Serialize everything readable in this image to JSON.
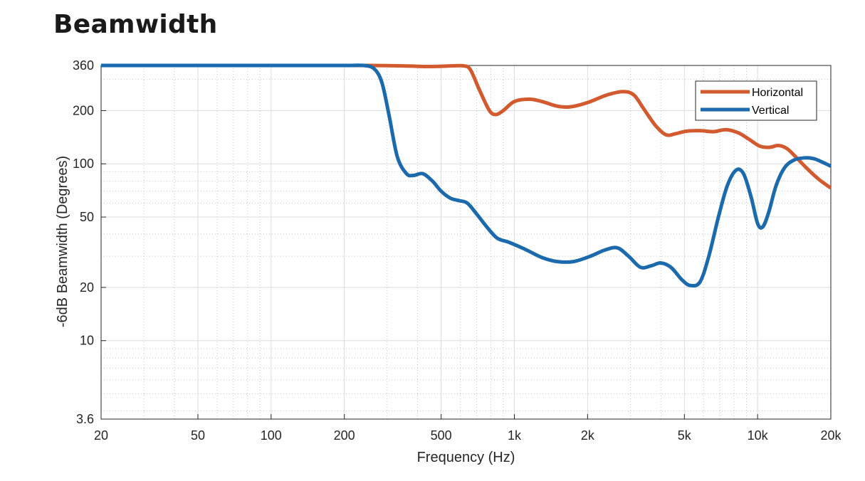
{
  "page": {
    "title": "Beamwidth"
  },
  "chart_data": {
    "type": "line",
    "xlabel": "Frequency (Hz)",
    "ylabel": "-6dB Beamwidth (Degrees)",
    "xscale": "log",
    "yscale": "log",
    "xlim": [
      20,
      20000
    ],
    "ylim": [
      3.6,
      360
    ],
    "xticks": [
      {
        "value": 20,
        "label": "20"
      },
      {
        "value": 50,
        "label": "50"
      },
      {
        "value": 100,
        "label": "100"
      },
      {
        "value": 200,
        "label": "200"
      },
      {
        "value": 500,
        "label": "500"
      },
      {
        "value": 1000,
        "label": "1k"
      },
      {
        "value": 2000,
        "label": "2k"
      },
      {
        "value": 5000,
        "label": "5k"
      },
      {
        "value": 10000,
        "label": "10k"
      },
      {
        "value": 20000,
        "label": "20k"
      }
    ],
    "yticks": [
      {
        "value": 3.6,
        "label": "3.6"
      },
      {
        "value": 10,
        "label": "10"
      },
      {
        "value": 20,
        "label": "20"
      },
      {
        "value": 50,
        "label": "50"
      },
      {
        "value": 100,
        "label": "100"
      },
      {
        "value": 200,
        "label": "200"
      },
      {
        "value": 360,
        "label": "360"
      }
    ],
    "grid": true,
    "legend": "top-right",
    "series": [
      {
        "name": "Horizontal",
        "color": "#d35a2e",
        "points": [
          [
            20,
            360
          ],
          [
            100,
            360
          ],
          [
            200,
            360
          ],
          [
            250,
            360
          ],
          [
            350,
            358
          ],
          [
            450,
            355
          ],
          [
            550,
            358
          ],
          [
            620,
            358
          ],
          [
            660,
            340
          ],
          [
            720,
            260
          ],
          [
            790,
            200
          ],
          [
            840,
            190
          ],
          [
            900,
            200
          ],
          [
            1000,
            225
          ],
          [
            1150,
            232
          ],
          [
            1300,
            225
          ],
          [
            1500,
            212
          ],
          [
            1700,
            210
          ],
          [
            2000,
            222
          ],
          [
            2400,
            245
          ],
          [
            2800,
            256
          ],
          [
            3100,
            245
          ],
          [
            3400,
            205
          ],
          [
            3800,
            165
          ],
          [
            4200,
            146
          ],
          [
            4600,
            148
          ],
          [
            5100,
            153
          ],
          [
            5800,
            154
          ],
          [
            6600,
            152
          ],
          [
            7400,
            156
          ],
          [
            8300,
            150
          ],
          [
            9200,
            138
          ],
          [
            10200,
            126
          ],
          [
            11200,
            124
          ],
          [
            12200,
            127
          ],
          [
            13200,
            122
          ],
          [
            14300,
            110
          ],
          [
            15500,
            98
          ],
          [
            16800,
            88
          ],
          [
            18200,
            80
          ],
          [
            20000,
            73
          ]
        ]
      },
      {
        "name": "Vertical",
        "color": "#1a6aad",
        "points": [
          [
            20,
            360
          ],
          [
            100,
            360
          ],
          [
            200,
            360
          ],
          [
            240,
            360
          ],
          [
            265,
            345
          ],
          [
            285,
            290
          ],
          [
            305,
            190
          ],
          [
            330,
            110
          ],
          [
            360,
            88
          ],
          [
            385,
            86
          ],
          [
            420,
            88
          ],
          [
            460,
            80
          ],
          [
            500,
            70
          ],
          [
            545,
            64
          ],
          [
            590,
            62
          ],
          [
            640,
            60
          ],
          [
            700,
            52
          ],
          [
            770,
            44
          ],
          [
            850,
            38
          ],
          [
            950,
            36
          ],
          [
            1100,
            33
          ],
          [
            1300,
            29.5
          ],
          [
            1500,
            28
          ],
          [
            1750,
            28
          ],
          [
            2050,
            30
          ],
          [
            2350,
            32.5
          ],
          [
            2650,
            33.5
          ],
          [
            2950,
            30
          ],
          [
            3300,
            26
          ],
          [
            3650,
            26.5
          ],
          [
            4000,
            27.5
          ],
          [
            4400,
            26
          ],
          [
            4900,
            22
          ],
          [
            5300,
            20.5
          ],
          [
            5800,
            21.5
          ],
          [
            6300,
            30
          ],
          [
            6900,
            50
          ],
          [
            7500,
            75
          ],
          [
            8150,
            92
          ],
          [
            8750,
            88
          ],
          [
            9400,
            65
          ],
          [
            10000,
            46
          ],
          [
            10500,
            44
          ],
          [
            11100,
            53
          ],
          [
            11900,
            75
          ],
          [
            12900,
            95
          ],
          [
            14100,
            105
          ],
          [
            15500,
            108
          ],
          [
            17000,
            107
          ],
          [
            18500,
            102
          ],
          [
            20000,
            97
          ]
        ]
      }
    ]
  }
}
